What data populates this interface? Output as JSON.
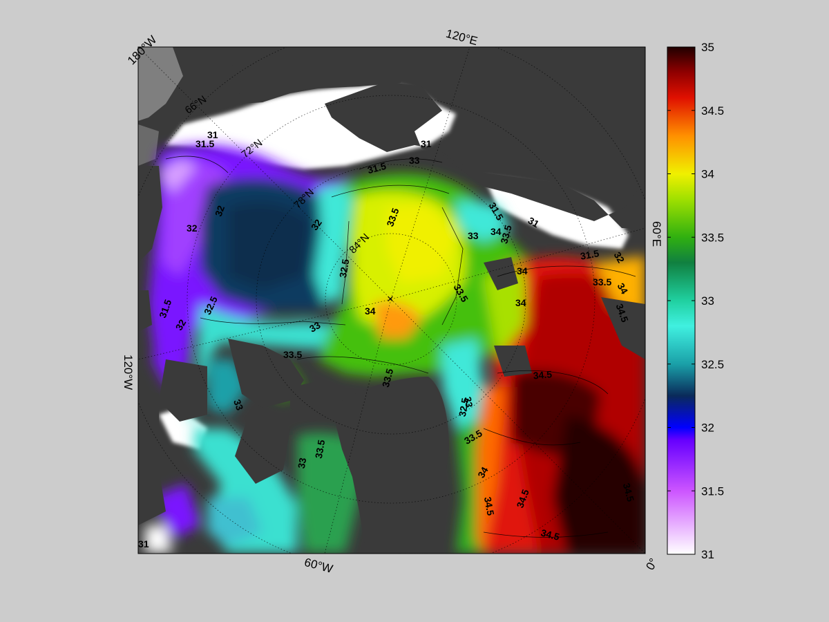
{
  "map": {
    "colors": {
      "figure_bg": "#cccccc",
      "land": "#3a3a3a",
      "land_light": "#7a7a7a",
      "ice": "#ffffff",
      "frame": "#000000"
    },
    "longitude_labels": [
      {
        "id": "lon-180w",
        "text": "180°W"
      },
      {
        "id": "lon-120e",
        "text": "120°E"
      },
      {
        "id": "lon-60e",
        "text": "60°E"
      },
      {
        "id": "lon-120w",
        "text": "120°W"
      },
      {
        "id": "lon-60w",
        "text": "60°W"
      },
      {
        "id": "lon-0",
        "text": "0°"
      }
    ],
    "latitude_labels": [
      {
        "id": "lat-66n",
        "text": "66°N"
      },
      {
        "id": "lat-72n",
        "text": "72°N"
      },
      {
        "id": "lat-78n",
        "text": "78°N"
      },
      {
        "id": "lat-84n",
        "text": "84°N"
      }
    ],
    "contour_labels": [
      "31",
      "31.5",
      "32",
      "32.5",
      "33",
      "33.5",
      "34",
      "34.5"
    ],
    "pole_marker": "×"
  },
  "colorbar": {
    "min": 31,
    "max": 35,
    "ticks": [
      "31",
      "31.5",
      "32",
      "32.5",
      "33",
      "33.5",
      "34",
      "34.5",
      "35"
    ],
    "colormap_stops": [
      {
        "value": 31.0,
        "color": "#ffffff"
      },
      {
        "value": 31.5,
        "color": "#cc55ff"
      },
      {
        "value": 31.9,
        "color": "#6600ff"
      },
      {
        "value": 32.0,
        "color": "#0000ff"
      },
      {
        "value": 32.25,
        "color": "#0a2a5a"
      },
      {
        "value": 32.5,
        "color": "#1aa0a8"
      },
      {
        "value": 32.8,
        "color": "#40f0e0"
      },
      {
        "value": 33.0,
        "color": "#20d0a0"
      },
      {
        "value": 33.3,
        "color": "#108040"
      },
      {
        "value": 33.5,
        "color": "#30b010"
      },
      {
        "value": 33.8,
        "color": "#a0e000"
      },
      {
        "value": 34.0,
        "color": "#f0f000"
      },
      {
        "value": 34.3,
        "color": "#ff9000"
      },
      {
        "value": 34.6,
        "color": "#e01000"
      },
      {
        "value": 34.8,
        "color": "#900000"
      },
      {
        "value": 35.0,
        "color": "#200000"
      }
    ]
  }
}
